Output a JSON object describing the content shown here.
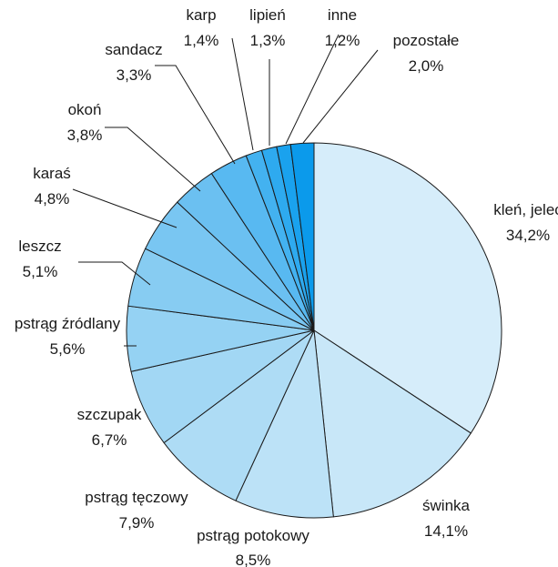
{
  "chart_data": {
    "type": "pie",
    "start_angle_deg": 0,
    "direction": "clockwise",
    "title": "",
    "slices": [
      {
        "label": "kleń, jelec",
        "value": 34.2,
        "value_label": "34,2%",
        "color": "#d6edfa"
      },
      {
        "label": "świnka",
        "value": 14.1,
        "value_label": "14,1%",
        "color": "#c8e7f8"
      },
      {
        "label": "pstrąg potokowy",
        "value": 8.5,
        "value_label": "8,5%",
        "color": "#bce2f7"
      },
      {
        "label": "pstrąg tęczowy",
        "value": 7.9,
        "value_label": "7,9%",
        "color": "#aedcf5"
      },
      {
        "label": "szczupak",
        "value": 6.7,
        "value_label": "6,7%",
        "color": "#a2d7f4"
      },
      {
        "label": "pstrąg źródlany",
        "value": 5.6,
        "value_label": "5,6%",
        "color": "#95d2f3"
      },
      {
        "label": "leszcz",
        "value": 5.1,
        "value_label": "5,1%",
        "color": "#87ccf2"
      },
      {
        "label": "karaś",
        "value": 4.8,
        "value_label": "4,8%",
        "color": "#79c6f2"
      },
      {
        "label": "okoń",
        "value": 3.8,
        "value_label": "3,8%",
        "color": "#6bc0f1"
      },
      {
        "label": "sandacz",
        "value": 3.3,
        "value_label": "3,3%",
        "color": "#58b9f1"
      },
      {
        "label": "karp",
        "value": 1.4,
        "value_label": "1,4%",
        "color": "#43b2f0"
      },
      {
        "label": "lipień",
        "value": 1.3,
        "value_label": "1,3%",
        "color": "#2eaaef"
      },
      {
        "label": "inne",
        "value": 1.2,
        "value_label": "1,2%",
        "color": "#1aa2ee"
      },
      {
        "label": "pozostałe",
        "value": 2.0,
        "value_label": "2,0%",
        "color": "#0b9aeb"
      }
    ]
  }
}
